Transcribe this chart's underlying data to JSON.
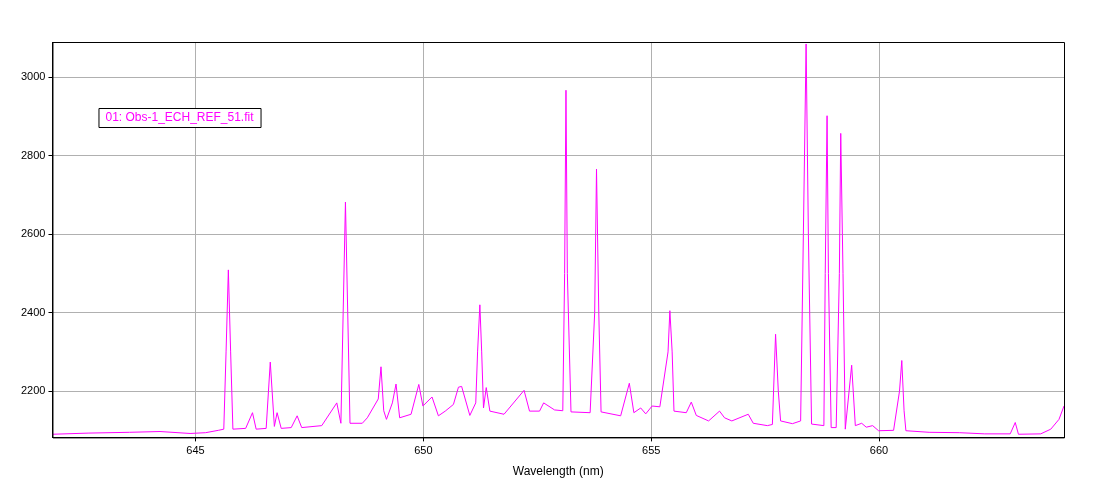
{
  "chart_data": {
    "type": "line",
    "xlabel": "Wavelength (nm)",
    "xlim": [
      641.86,
      664.06
    ],
    "xticks": [
      645,
      650,
      655,
      660
    ],
    "ylim": [
      2082,
      3090
    ],
    "yticks": [
      2200,
      2400,
      2600,
      2800,
      3000
    ],
    "grid": true,
    "legend": "top left",
    "line_style": "solid",
    "series": [
      {
        "name": "01: Obs-1_ECH_REF_51.fit",
        "color": "#ff00ff",
        "x": [
          641.86,
          642.66,
          643.55,
          644.22,
          644.88,
          645.22,
          645.5,
          645.62,
          645.67,
          645.72,
          645.77,
          645.82,
          646.1,
          646.25,
          646.33,
          646.55,
          646.64,
          646.73,
          646.79,
          646.88,
          647.1,
          647.23,
          647.33,
          647.77,
          648.1,
          648.19,
          648.24,
          648.29,
          648.34,
          648.39,
          648.66,
          648.77,
          649.01,
          649.07,
          649.13,
          649.19,
          649.32,
          649.4,
          649.48,
          649.73,
          649.9,
          649.99,
          650.19,
          650.33,
          650.48,
          650.66,
          650.77,
          650.84,
          651.02,
          651.15,
          651.19,
          651.24,
          651.28,
          651.32,
          651.38,
          651.46,
          651.77,
          652.21,
          652.33,
          652.55,
          652.64,
          652.88,
          653.06,
          653.1,
          653.13,
          653.16,
          653.24,
          653.66,
          653.76,
          653.8,
          653.85,
          653.9,
          654.33,
          654.52,
          654.62,
          654.77,
          654.88,
          655.02,
          655.19,
          655.37,
          655.41,
          655.46,
          655.5,
          655.77,
          655.88,
          655.99,
          656.26,
          656.5,
          656.61,
          656.77,
          657.13,
          657.24,
          657.55,
          657.66,
          657.73,
          657.79,
          657.84,
          658.1,
          658.28,
          658.34,
          658.4,
          658.45,
          658.52,
          658.79,
          658.82,
          658.86,
          658.89,
          658.95,
          659.06,
          659.13,
          659.16,
          659.21,
          659.26,
          659.4,
          659.48,
          659.62,
          659.72,
          659.86,
          659.99,
          660.32,
          660.45,
          660.5,
          660.55,
          660.59,
          661.1,
          661.77,
          662.32,
          662.88,
          662.99,
          663.06,
          663.55,
          663.77,
          663.95,
          664.06
        ],
        "values": [
          2090,
          2093,
          2095,
          2097,
          2092,
          2094,
          2100,
          2103,
          2300,
          2509,
          2300,
          2103,
          2105,
          2145,
          2103,
          2105,
          2274,
          2110,
          2145,
          2105,
          2107,
          2137,
          2107,
          2112,
          2170,
          2118,
          2400,
          2682,
          2400,
          2118,
          2118,
          2132,
          2180,
          2262,
          2150,
          2128,
          2170,
          2218,
          2132,
          2141,
          2217,
          2162,
          2185,
          2137,
          2149,
          2166,
          2210,
          2212,
          2138,
          2170,
          2300,
          2420,
          2300,
          2157,
          2209,
          2149,
          2141,
          2202,
          2149,
          2149,
          2170,
          2152,
          2150,
          2500,
          2967,
          2500,
          2147,
          2145,
          2400,
          2766,
          2400,
          2147,
          2137,
          2220,
          2145,
          2157,
          2142,
          2162,
          2160,
          2300,
          2405,
          2300,
          2149,
          2145,
          2172,
          2138,
          2124,
          2149,
          2132,
          2124,
          2141,
          2118,
          2112,
          2115,
          2345,
          2200,
          2124,
          2117,
          2124,
          2600,
          3085,
          2600,
          2116,
          2112,
          2500,
          2902,
          2500,
          2107,
          2107,
          2500,
          2857,
          2500,
          2103,
          2266,
          2112,
          2118,
          2108,
          2112,
          2099,
          2100,
          2200,
          2278,
          2150,
          2099,
          2095,
          2094,
          2091,
          2091,
          2120,
          2090,
          2091,
          2103,
          2128,
          2162
        ]
      }
    ]
  }
}
